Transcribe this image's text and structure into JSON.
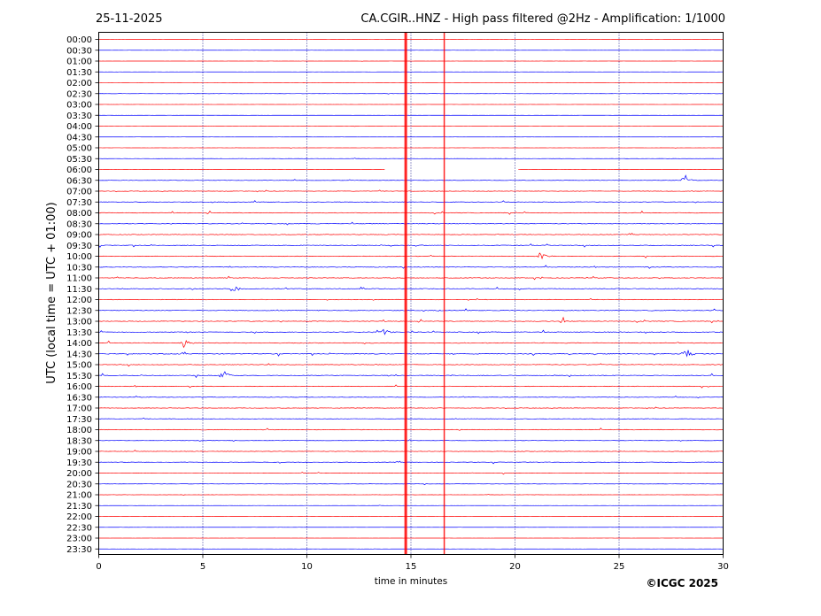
{
  "header": {
    "date": "25-11-2025",
    "title": "CA.CGIR..HNZ - High pass filtered @2Hz - Amplification: 1/1000"
  },
  "footer": {
    "copyright": "©ICGC 2025"
  },
  "colors": {
    "red": "#ff0000",
    "blue": "#0000ff",
    "grid": "#000080"
  },
  "chart_data": {
    "type": "line",
    "title": "CA.CGIR..HNZ - High pass filtered @2Hz - Amplification: 1/1000",
    "xlabel": "time in minutes",
    "ylabel": "UTC (local time = UTC + 01:00)",
    "xlim": [
      0,
      30
    ],
    "x_ticks": [
      0,
      5,
      10,
      15,
      20,
      25,
      30
    ],
    "vertical_gridlines_at": [
      5,
      10,
      15,
      20,
      25
    ],
    "row_labels": [
      "00:00",
      "00:30",
      "01:00",
      "01:30",
      "02:00",
      "02:30",
      "03:00",
      "03:30",
      "04:00",
      "04:30",
      "05:00",
      "05:30",
      "06:00",
      "06:30",
      "07:00",
      "07:30",
      "08:00",
      "08:30",
      "09:00",
      "09:30",
      "10:00",
      "10:30",
      "11:00",
      "11:30",
      "12:00",
      "12:30",
      "13:00",
      "13:30",
      "14:00",
      "14:30",
      "15:00",
      "15:30",
      "16:00",
      "16:30",
      "17:00",
      "17:30",
      "18:00",
      "18:30",
      "19:00",
      "19:30",
      "20:00",
      "20:30",
      "21:00",
      "21:30",
      "22:00",
      "22:30",
      "23:00",
      "23:30"
    ],
    "trace_colors_by_hour": "red on the hour, blue on the half hour",
    "activity_levels": [
      0.1,
      0.1,
      0.1,
      0.1,
      0.15,
      0.2,
      0.15,
      0.1,
      0.1,
      0.1,
      0.15,
      0.2,
      0.1,
      0.35,
      0.45,
      0.5,
      0.6,
      0.55,
      0.55,
      0.6,
      0.5,
      0.55,
      0.55,
      0.6,
      0.45,
      0.6,
      0.6,
      0.7,
      0.65,
      0.7,
      0.55,
      0.6,
      0.5,
      0.45,
      0.45,
      0.4,
      0.55,
      0.3,
      0.45,
      0.45,
      0.35,
      0.25,
      0.2,
      0.15,
      0.1,
      0.1,
      0.1,
      0.1
    ],
    "events": [
      {
        "row": 13,
        "minute": 28.2,
        "amplitude": 1.0
      },
      {
        "row": 23,
        "minute": 6.5,
        "amplitude": 0.9
      },
      {
        "row": 28,
        "minute": 4.1,
        "amplitude": 0.9
      },
      {
        "row": 29,
        "minute": 28.3,
        "amplitude": 1.0
      },
      {
        "row": 31,
        "minute": 6.0,
        "amplitude": 0.9
      },
      {
        "row": 27,
        "minute": 13.7,
        "amplitude": 0.7
      },
      {
        "row": 20,
        "minute": 21.2,
        "amplitude": 0.7
      },
      {
        "row": 26,
        "minute": 22.3,
        "amplitude": 0.6
      }
    ],
    "data_gaps": [
      {
        "row": 12,
        "from_minute": 13.8,
        "to_minute": 20.1
      }
    ],
    "vertical_markers": [
      {
        "minute": 14.75,
        "color": "#ff0000",
        "width": 3
      },
      {
        "minute": 16.6,
        "color": "#ff0000",
        "width": 1.5
      }
    ]
  }
}
